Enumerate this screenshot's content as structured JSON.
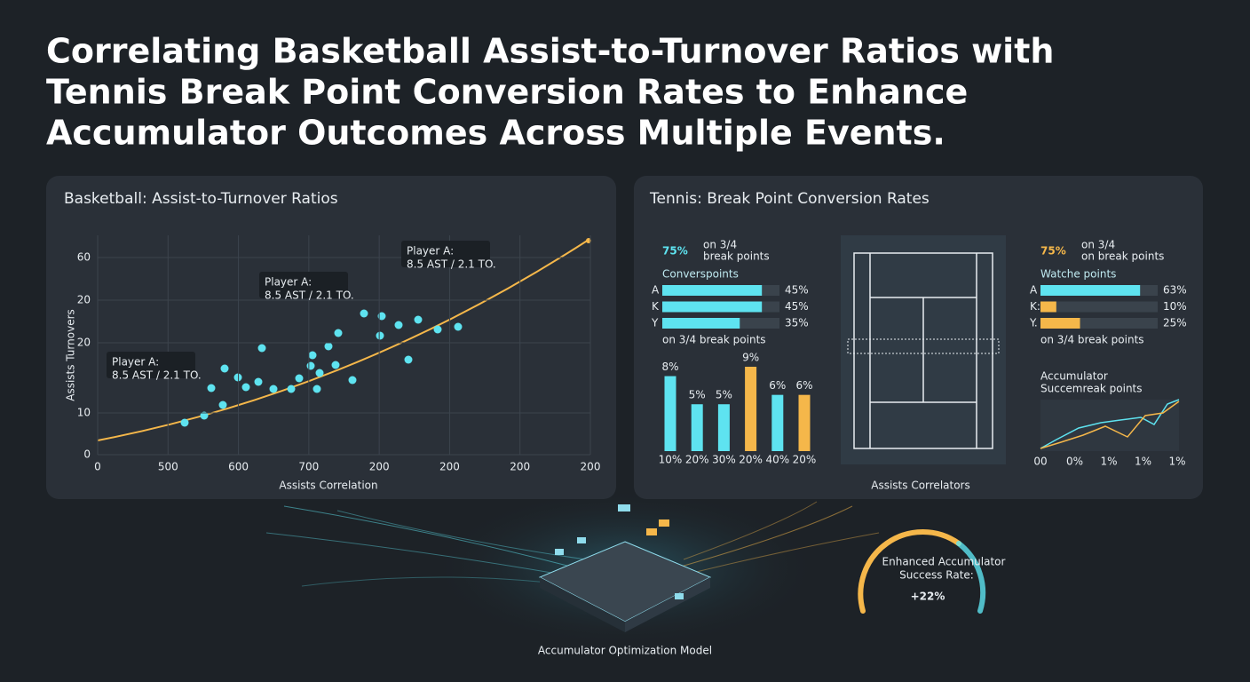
{
  "title_lines": [
    "Correlating Basketball Assist-to-Turnover Ratios with",
    "Tennis Break Point Conversion Rates to Enhance",
    "Accumulator Outcomes Across Multiple Events."
  ],
  "basketball": {
    "title": "Basketball: Assist-to-Turnover Ratios",
    "y_label": "Assists Turnovers",
    "x_label": "Assists Correlation",
    "yticks": [
      "60",
      "20",
      "20",
      "10",
      "0"
    ],
    "xticks": [
      "0",
      "500",
      "600",
      "700",
      "200",
      "200",
      "200",
      "200"
    ],
    "annotations": [
      {
        "name": "Player A:",
        "text": "8.5 AST / 2.1 TO."
      },
      {
        "name": "Player A:",
        "text": "8.5 AST / 2.1 TO."
      },
      {
        "name": "Player A:",
        "text": "8.5 AST / 2.1 TO."
      }
    ]
  },
  "tennis": {
    "title": "Tennis: Break Point Conversion Rates",
    "left": {
      "headline": "75%",
      "sub": [
        "on 3/4",
        "break points"
      ],
      "label": "Converspoints",
      "note": "on 3/4 break points",
      "rows": {
        "categories": [
          "A",
          "K",
          "Y"
        ],
        "values": [
          45,
          45,
          35
        ],
        "value_labels": [
          "45%",
          "45%",
          "35%"
        ],
        "colors": [
          "#5ee3f0",
          "#5ee3f0",
          "#5ee3f0"
        ]
      }
    },
    "columns": {
      "categories": [
        "10%",
        "20%",
        "30%",
        "20%",
        "40%",
        "20%"
      ],
      "values": [
        8,
        5,
        5,
        9,
        6,
        6
      ],
      "value_labels": [
        "8%",
        "5%",
        "5%",
        "9%",
        "6%",
        "6%"
      ],
      "colors": [
        "#5ee3f0",
        "#5ee3f0",
        "#5ee3f0",
        "#f5b74a",
        "#5ee3f0",
        "#f5b74a"
      ]
    },
    "right": {
      "headline": "75%",
      "sub": [
        "on 3/4",
        "on break points"
      ],
      "label": "Watche points",
      "note": "on 3/4 break points",
      "rows": {
        "categories": [
          "A",
          "K:",
          "Y."
        ],
        "values": [
          63,
          10,
          25
        ],
        "value_labels": [
          "63%",
          "10%",
          "25%"
        ],
        "colors": [
          "#5ee3f0",
          "#f5b74a",
          "#f5b74a"
        ]
      }
    },
    "accumulator": {
      "title": "Accumulator",
      "sub": "Succemreak points",
      "xticks": [
        "00",
        "0%",
        "1%",
        "1%",
        "1%"
      ]
    },
    "court_label": "Assists Correlators"
  },
  "footer": {
    "model": "Accumulator Optimization Model",
    "gauge_lines": [
      "Enhanced Accumulator",
      "Success Rate:"
    ],
    "gauge_value": "+22%"
  }
}
